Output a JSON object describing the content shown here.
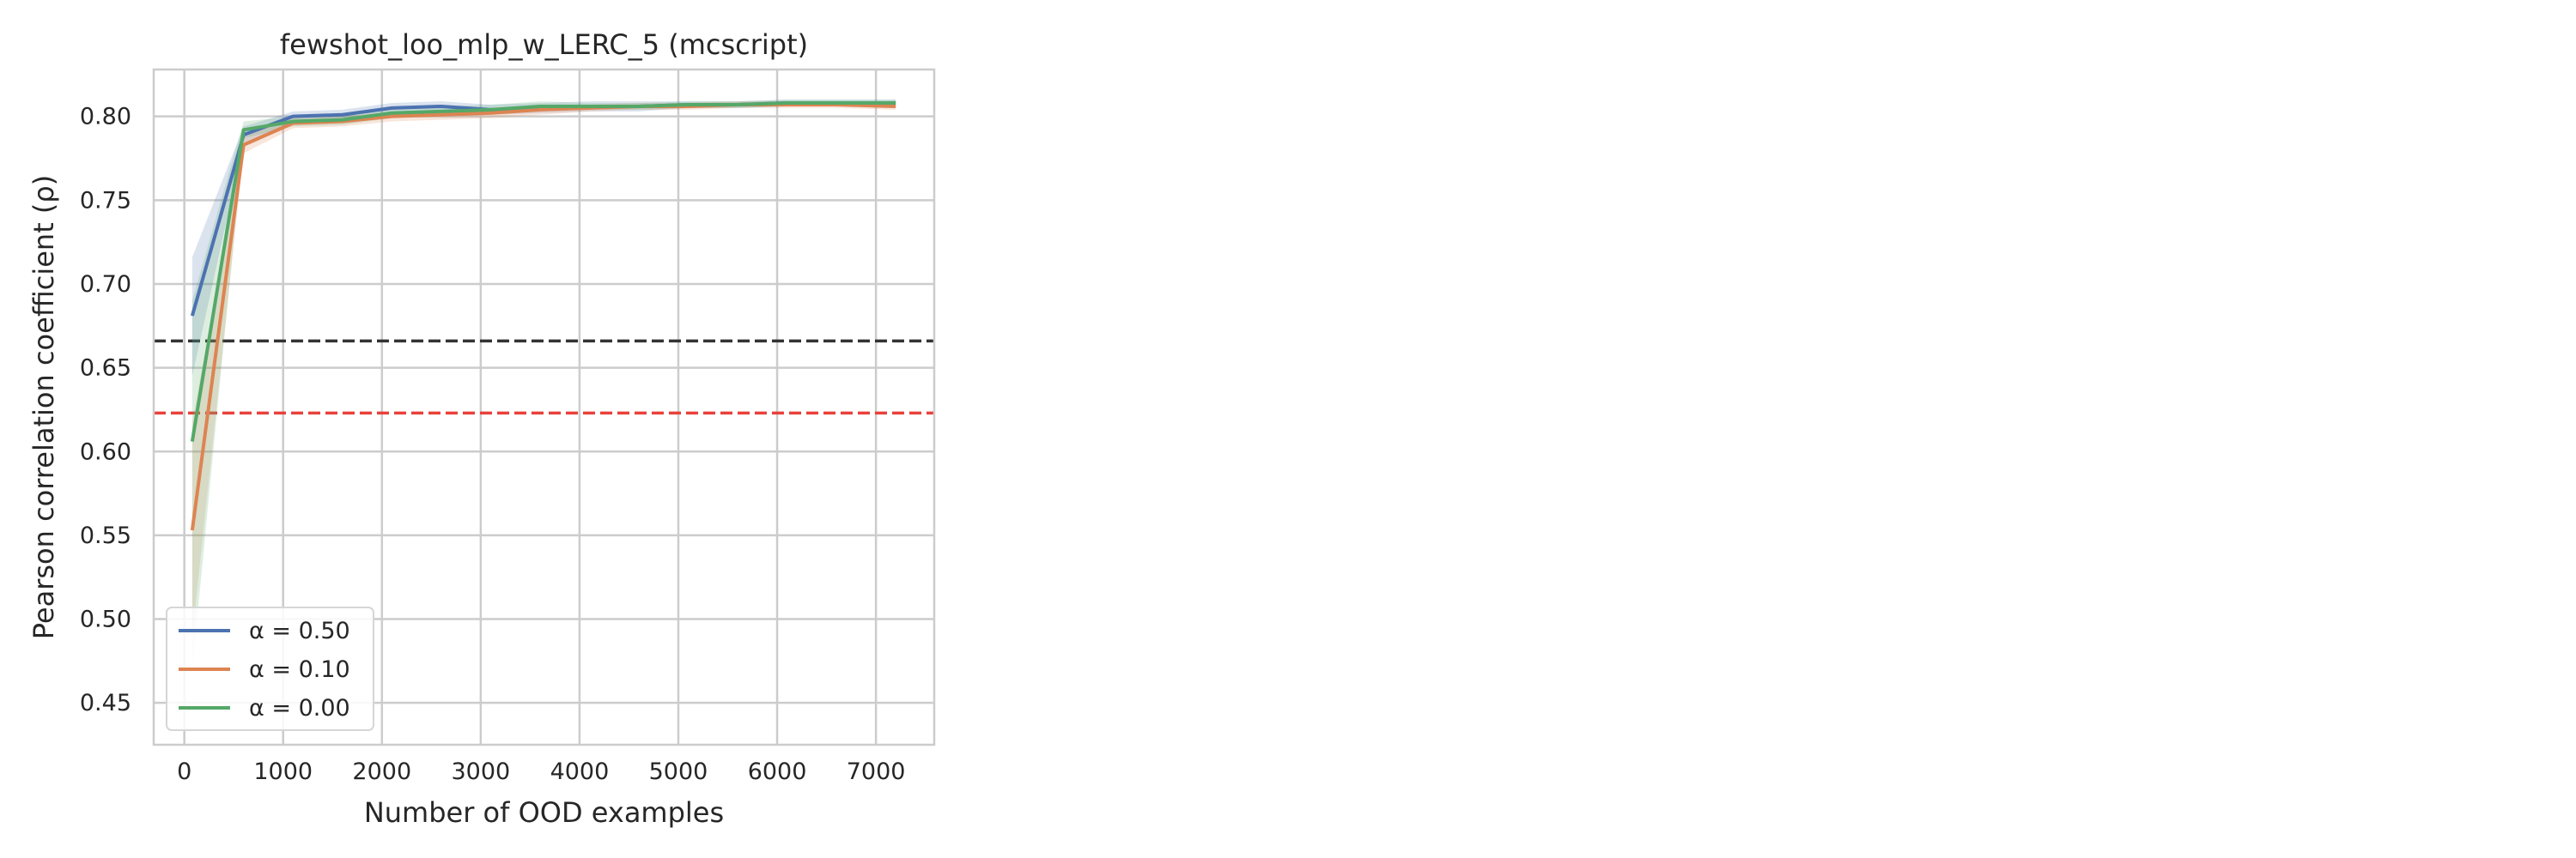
{
  "chart_data": {
    "type": "line",
    "title": "fewshot_loo_mlp_w_LERC_5 (mcscript)",
    "xlabel": "Number of OOD examples",
    "ylabel": "Pearson correlation coefficient (ρ)",
    "xlim": [
      -310,
      7590
    ],
    "ylim": [
      0.425,
      0.828
    ],
    "xticks": [
      0,
      1000,
      2000,
      3000,
      4000,
      5000,
      6000,
      7000
    ],
    "xtick_labels": [
      "0",
      "1000",
      "2000",
      "3000",
      "4000",
      "5000",
      "6000",
      "7000"
    ],
    "yticks": [
      0.45,
      0.5,
      0.55,
      0.6,
      0.65,
      0.7,
      0.75,
      0.8
    ],
    "ytick_labels": [
      "0.45",
      "0.50",
      "0.55",
      "0.60",
      "0.65",
      "0.70",
      "0.75",
      "0.80"
    ],
    "grid": true,
    "legend_position": "lower-left",
    "x": [
      80,
      600,
      1100,
      1600,
      2100,
      2600,
      3100,
      3600,
      4100,
      4600,
      5100,
      5600,
      6100,
      6600,
      7200
    ],
    "series": [
      {
        "name": "α = 0.50",
        "color": "#4c72b0",
        "values": [
          0.681,
          0.789,
          0.8,
          0.801,
          0.805,
          0.806,
          0.804,
          0.805,
          0.806,
          0.806,
          0.807,
          0.807,
          0.808,
          0.808,
          0.808
        ],
        "band_lower": [
          0.645,
          0.784,
          0.797,
          0.798,
          0.802,
          0.803,
          0.801,
          0.802,
          0.803,
          0.803,
          0.805,
          0.805,
          0.806,
          0.806,
          0.806
        ],
        "band_upper": [
          0.716,
          0.794,
          0.803,
          0.804,
          0.808,
          0.809,
          0.807,
          0.808,
          0.809,
          0.809,
          0.809,
          0.809,
          0.81,
          0.81,
          0.81
        ]
      },
      {
        "name": "α = 0.10",
        "color": "#dd8452",
        "values": [
          0.553,
          0.783,
          0.796,
          0.797,
          0.8,
          0.801,
          0.802,
          0.804,
          0.805,
          0.806,
          0.806,
          0.807,
          0.807,
          0.807,
          0.806
        ],
        "band_lower": [
          0.49,
          0.778,
          0.793,
          0.794,
          0.797,
          0.798,
          0.799,
          0.801,
          0.803,
          0.804,
          0.804,
          0.805,
          0.805,
          0.805,
          0.804
        ],
        "band_upper": [
          0.617,
          0.788,
          0.799,
          0.8,
          0.803,
          0.804,
          0.805,
          0.807,
          0.807,
          0.808,
          0.808,
          0.809,
          0.809,
          0.809,
          0.808
        ]
      },
      {
        "name": "α = 0.00",
        "color": "#55a868",
        "values": [
          0.606,
          0.792,
          0.797,
          0.798,
          0.802,
          0.803,
          0.804,
          0.806,
          0.806,
          0.806,
          0.807,
          0.807,
          0.808,
          0.808,
          0.808
        ],
        "band_lower": [
          0.47,
          0.787,
          0.794,
          0.795,
          0.799,
          0.8,
          0.801,
          0.803,
          0.804,
          0.804,
          0.805,
          0.805,
          0.806,
          0.806,
          0.806
        ],
        "band_upper": [
          0.69,
          0.797,
          0.8,
          0.801,
          0.805,
          0.806,
          0.807,
          0.809,
          0.808,
          0.808,
          0.809,
          0.809,
          0.81,
          0.81,
          0.81
        ]
      }
    ],
    "reference_lines": [
      {
        "y": 0.666,
        "color": "#333333",
        "style": "dashed"
      },
      {
        "y": 0.623,
        "color": "#e8413c",
        "style": "dashed"
      }
    ]
  }
}
